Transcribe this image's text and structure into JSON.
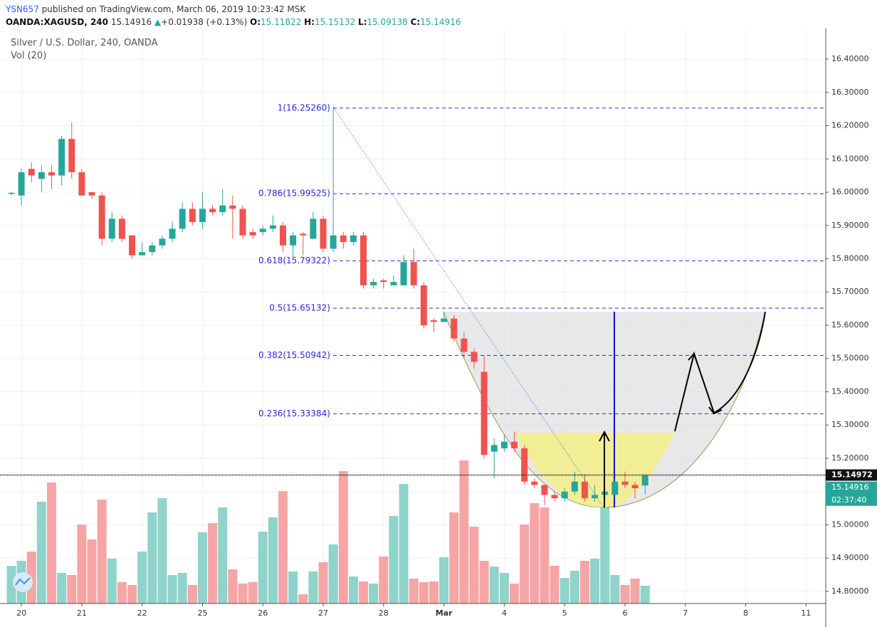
{
  "header": {
    "author": "YSN657",
    "published": "published on TradingView.com, March 06, 2019 10:23:42 MSK",
    "symbol": "OANDA:XAGUSD, 240",
    "last": "15.14916",
    "arrow": "▲",
    "change": "+0.01938 (+0.13%)",
    "o_label": "O:",
    "open": "15.11822",
    "h_label": "H:",
    "high": "15.15132",
    "l_label": "L:",
    "low": "15.09138",
    "c_label": "C:",
    "close": "15.14916"
  },
  "chart_data": {
    "type": "candlestick",
    "title": "Silver / U.S. Dollar, 240, OANDA",
    "volume_title": "Vol (20)",
    "up_color": "#26a69a",
    "down_color": "#ef5350",
    "volume_up_color": "#8fd3ca",
    "volume_down_color": "#f5a5a5",
    "xlim": [
      -1.13,
      80.96
    ],
    "xticks": [
      {
        "value": 1,
        "label": "20"
      },
      {
        "value": 7,
        "label": "21"
      },
      {
        "value": 13,
        "label": "22"
      },
      {
        "value": 19,
        "label": "25"
      },
      {
        "value": 25,
        "label": "26"
      },
      {
        "value": 31,
        "label": "27"
      },
      {
        "value": 37,
        "label": "28"
      },
      {
        "value": 43,
        "label": "Mar"
      },
      {
        "value": 49,
        "label": "4"
      },
      {
        "value": 55,
        "label": "5"
      },
      {
        "value": 61,
        "label": "6"
      },
      {
        "value": 67,
        "label": "7"
      },
      {
        "value": 73,
        "label": "8"
      },
      {
        "value": 79,
        "label": "11"
      }
    ],
    "ylim": [
      14.7636,
      16.492
    ],
    "yticks": [
      {
        "value": 16.4,
        "label": "16.40000"
      },
      {
        "value": 16.3,
        "label": "16.30000"
      },
      {
        "value": 16.2,
        "label": "16.20000"
      },
      {
        "value": 16.1,
        "label": "16.10000"
      },
      {
        "value": 16.0,
        "label": "16.00000"
      },
      {
        "value": 15.9,
        "label": "15.90000"
      },
      {
        "value": 15.8,
        "label": "15.80000"
      },
      {
        "value": 15.7,
        "label": "15.70000"
      },
      {
        "value": 15.6,
        "label": "15.60000"
      },
      {
        "value": 15.5,
        "label": "15.50000"
      },
      {
        "value": 15.4,
        "label": "15.40000"
      },
      {
        "value": 15.3,
        "label": "15.30000"
      },
      {
        "value": 15.2,
        "label": "15.20000"
      },
      {
        "value": 15.1,
        "label": "15.10000"
      },
      {
        "value": 15.0,
        "label": "15.00000"
      },
      {
        "value": 14.9,
        "label": "14.90000"
      },
      {
        "value": 14.8,
        "label": "14.80000"
      }
    ],
    "grid": true,
    "open": [
      15.995,
      15.99,
      16.07,
      16.04,
      16.06,
      16.05,
      16.16,
      16.06,
      16.0,
      15.99,
      15.86,
      15.92,
      15.87,
      15.81,
      15.82,
      15.84,
      15.86,
      15.89,
      15.95,
      15.91,
      15.95,
      15.94,
      15.96,
      15.95,
      15.88,
      15.88,
      15.89,
      15.9,
      15.84,
      15.875,
      15.86,
      15.92,
      15.83,
      15.87,
      15.85,
      15.87,
      15.72,
      15.735,
      15.72,
      15.72,
      15.79,
      15.72,
      15.615,
      15.61,
      15.62,
      15.56,
      15.52,
      15.46,
      15.22,
      15.23,
      15.25,
      15.23,
      15.13,
      15.12,
      15.09,
      15.08,
      15.1,
      15.13,
      15.08,
      15.09,
      15.09,
      15.13,
      15.12,
      15.11822
    ],
    "high": [
      16.0,
      16.07,
      16.09,
      16.08,
      16.08,
      16.17,
      16.21,
      16.07,
      16.0,
      16.0,
      15.94,
      15.93,
      15.87,
      15.85,
      15.85,
      15.87,
      15.91,
      15.97,
      15.97,
      16.0,
      15.96,
      16.01,
      15.99,
      15.96,
      15.89,
      15.9,
      15.93,
      15.91,
      15.88,
      15.88,
      15.94,
      15.93,
      16.2526,
      15.88,
      15.88,
      15.88,
      15.74,
      15.74,
      15.75,
      15.81,
      15.83,
      15.73,
      15.62,
      15.64,
      15.63,
      15.58,
      15.53,
      15.51,
      15.26,
      15.27,
      15.28,
      15.24,
      15.14,
      15.12,
      15.1,
      15.11,
      15.16,
      15.15,
      15.12,
      15.11,
      15.14,
      15.16,
      15.13,
      15.15132
    ],
    "low": [
      15.99,
      15.96,
      16.03,
      16.0,
      16.01,
      16.02,
      16.04,
      15.99,
      15.98,
      15.84,
      15.85,
      15.85,
      15.8,
      15.81,
      15.81,
      15.83,
      15.85,
      15.88,
      15.9,
      15.89,
      15.93,
      15.93,
      15.86,
      15.86,
      15.86,
      15.87,
      15.88,
      15.82,
      15.8,
      15.81,
      15.86,
      15.82,
      15.82,
      15.83,
      15.84,
      15.71,
      15.71,
      15.71,
      15.72,
      15.72,
      15.71,
      15.59,
      15.58,
      15.61,
      15.55,
      15.5,
      15.47,
      15.2,
      15.14,
      15.22,
      15.22,
      15.12,
      15.11,
      15.06,
      15.07,
      15.07,
      15.09,
      15.07,
      15.07,
      15.08,
      15.08,
      15.11,
      15.08,
      15.09138
    ],
    "close": [
      15.998,
      16.06,
      16.05,
      16.06,
      16.05,
      16.16,
      16.06,
      15.99,
      15.99,
      15.86,
      15.92,
      15.86,
      15.81,
      15.82,
      15.84,
      15.86,
      15.89,
      15.95,
      15.91,
      15.95,
      15.94,
      15.96,
      15.95,
      15.87,
      15.87,
      15.89,
      15.9,
      15.84,
      15.87,
      15.87,
      15.92,
      15.83,
      15.87,
      15.85,
      15.87,
      15.72,
      15.73,
      15.73,
      15.73,
      15.79,
      15.72,
      15.6,
      15.61,
      15.62,
      15.56,
      15.52,
      15.49,
      15.21,
      15.24,
      15.25,
      15.23,
      15.13,
      15.12,
      15.09,
      15.08,
      15.1,
      15.13,
      15.08,
      15.09,
      15.1,
      15.13,
      15.12,
      15.11,
      15.14916
    ],
    "volume": [
      53,
      60,
      73,
      143,
      170,
      43,
      40,
      111,
      90,
      146,
      63,
      30,
      26,
      73,
      128,
      148,
      40,
      43,
      26,
      100,
      113,
      135,
      48,
      28,
      30,
      101,
      121,
      158,
      45,
      13,
      45,
      58,
      83,
      186,
      38,
      31,
      28,
      66,
      123,
      168,
      35,
      30,
      31,
      65,
      128,
      201,
      108,
      60,
      52,
      43,
      28,
      111,
      141,
      135,
      53,
      36,
      46,
      60,
      63,
      136,
      40,
      26,
      35,
      25
    ],
    "volume_lim": [
      0,
      220
    ],
    "fib_levels": [
      {
        "value": 16.2526,
        "label": "1(16.25260)"
      },
      {
        "value": 15.99525,
        "label": "0.786(15.99525)"
      },
      {
        "value": 15.79322,
        "label": "0.618(15.79322)"
      },
      {
        "value": 15.65132,
        "label": "0.5(15.65132)"
      },
      {
        "value": 15.50942,
        "label": "0.382(15.50942)"
      },
      {
        "value": 15.33384,
        "label": "0.236(15.33384)"
      }
    ],
    "fib_color": "#2a2adb",
    "price_line": 15.14972,
    "last_price": 15.14916,
    "countdown": "02:37:40"
  }
}
